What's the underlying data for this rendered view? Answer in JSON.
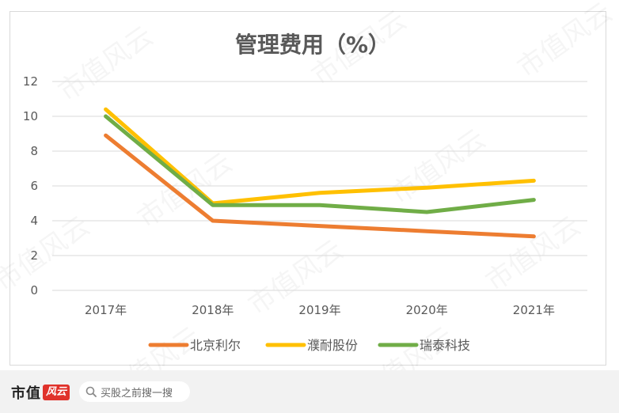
{
  "chart_data": {
    "type": "line",
    "title": "管理费用（%）",
    "categories": [
      "2017年",
      "2018年",
      "2019年",
      "2020年",
      "2021年"
    ],
    "ylim": [
      0,
      12
    ],
    "yticks": [
      0,
      2,
      4,
      6,
      8,
      10,
      12
    ],
    "grid": true,
    "legend_position": "bottom",
    "series": [
      {
        "name": "北京利尔",
        "color": "#ed7d31",
        "values": [
          8.9,
          4.0,
          3.7,
          3.4,
          3.1
        ]
      },
      {
        "name": "濮耐股份",
        "color": "#ffc000",
        "values": [
          10.4,
          5.0,
          5.6,
          5.9,
          6.3
        ]
      },
      {
        "name": "瑞泰科技",
        "color": "#70ad47",
        "values": [
          10.0,
          4.9,
          4.9,
          4.5,
          5.2
        ]
      }
    ]
  },
  "watermark": "市值风云",
  "footer": {
    "brand_label": "市值",
    "brand_mark": "风云",
    "search_placeholder": "买股之前搜一搜"
  }
}
